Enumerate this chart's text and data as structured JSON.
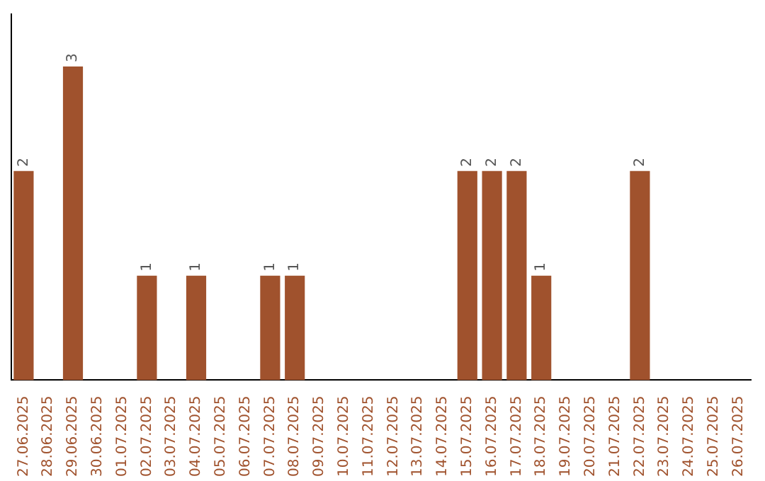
{
  "chart_data": {
    "type": "bar",
    "categories": [
      "27.06.2025",
      "28.06.2025",
      "29.06.2025",
      "30.06.2025",
      "01.07.2025",
      "02.07.2025",
      "03.07.2025",
      "04.07.2025",
      "05.07.2025",
      "06.07.2025",
      "07.07.2025",
      "08.07.2025",
      "09.07.2025",
      "10.07.2025",
      "11.07.2025",
      "12.07.2025",
      "13.07.2025",
      "14.07.2025",
      "15.07.2025",
      "16.07.2025",
      "17.07.2025",
      "18.07.2025",
      "19.07.2025",
      "20.07.2025",
      "21.07.2025",
      "22.07.2025",
      "23.07.2025",
      "24.07.2025",
      "25.07.2025",
      "26.07.2025"
    ],
    "values": [
      2,
      0,
      3,
      0,
      0,
      1,
      0,
      1,
      0,
      0,
      1,
      1,
      0,
      0,
      0,
      0,
      0,
      0,
      2,
      2,
      2,
      1,
      0,
      0,
      0,
      2,
      0,
      0,
      0,
      0
    ],
    "value_labels": [
      "2",
      null,
      "3",
      null,
      null,
      "1",
      null,
      "1",
      null,
      null,
      "1",
      "1",
      null,
      null,
      null,
      null,
      null,
      null,
      "2",
      "2",
      "2",
      "1",
      null,
      null,
      null,
      "2",
      null,
      null,
      null,
      null
    ],
    "color": "#a0522d",
    "tick_labels": "x",
    "grid": false,
    "legend": false
  }
}
